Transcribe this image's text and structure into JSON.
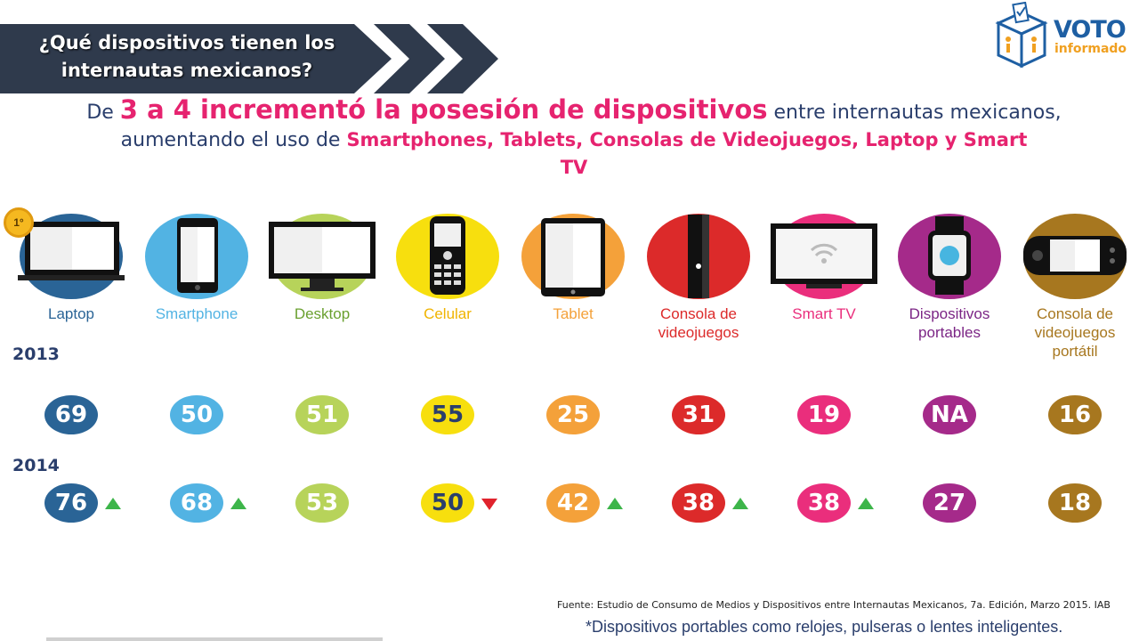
{
  "banner": {
    "title": "¿Qué dispositivos tienen los internautas mexicanos?",
    "color": "#2f3a4c"
  },
  "logo": {
    "word": "VOTO",
    "sub": "informado",
    "icon": "ballot-box-icon"
  },
  "headline": {
    "line1_a": "De ",
    "line1_b": "3 a 4 incrementó la posesión de dispositivos",
    "line1_c": " entre internautas mexicanos,",
    "line2_a": "aumentando el uso  de  ",
    "line2_b": "Smartphones, Tablets, Consolas de Videojuegos, Laptop y Smart",
    "line3": "TV"
  },
  "badge": "1°",
  "chart_data": {
    "type": "table",
    "categories": [
      "Laptop",
      "Smartphone",
      "Desktop",
      "Celular",
      "Tablet",
      "Consola de videojuegos",
      "Smart TV",
      "Dispositivos portables",
      "Consola de videojuegos portátil"
    ],
    "series": [
      {
        "name": "2013",
        "values": [
          "69",
          "50",
          "51",
          "55",
          "25",
          "31",
          "19",
          "NA",
          "16"
        ]
      },
      {
        "name": "2014",
        "values": [
          "76",
          "68",
          "53",
          "50",
          "42",
          "38",
          "38",
          "27",
          "18"
        ]
      }
    ],
    "trend_2014": [
      "up",
      "up",
      "none",
      "down",
      "up",
      "up",
      "up",
      "none",
      "none"
    ],
    "colors": [
      "#2a6496",
      "#52b3e3",
      "#b7d35a",
      "#f7df0e",
      "#f4a13a",
      "#dc2a2a",
      "#ea2e7c",
      "#a52a8a",
      "#a7771f"
    ],
    "label_colors": [
      "#2a6496",
      "#52b3e3",
      "#6aa02f",
      "#f0b400",
      "#f4a13a",
      "#dc2a2a",
      "#ea2e7c",
      "#7b2585",
      "#a7771f"
    ],
    "icons": [
      "laptop-icon",
      "smartphone-icon",
      "desktop-icon",
      "feature-phone-icon",
      "tablet-icon",
      "game-console-icon",
      "smart-tv-icon",
      "smartwatch-icon",
      "handheld-console-icon"
    ]
  },
  "source": "Fuente: Estudio de Consumo de Medios y Dispositivos entre Internautas Mexicanos, 7a. Edición, Marzo 2015. IAB",
  "footnote": "*Dispositivos portables como relojes, pulseras o lentes inteligentes."
}
